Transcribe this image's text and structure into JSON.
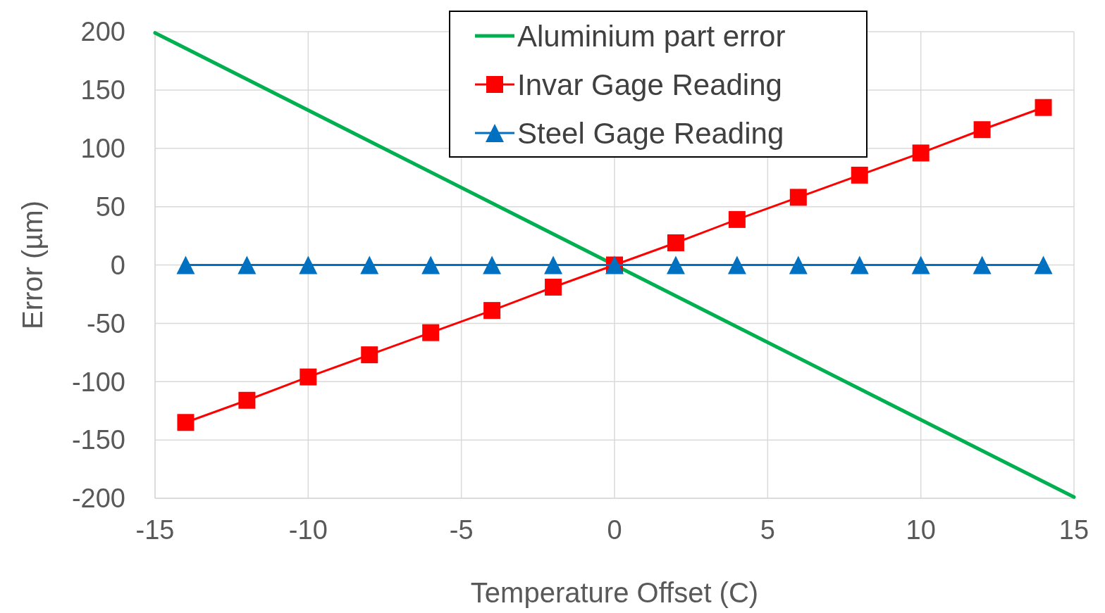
{
  "chart_data": {
    "type": "line",
    "xlabel": "Temperature Offset (C)",
    "ylabel": "Error (µm)",
    "xlim": [
      -15,
      15
    ],
    "xticks": [
      -15,
      -10,
      -5,
      0,
      5,
      10,
      15
    ],
    "ylim": [
      -200,
      200
    ],
    "yticks": [
      -200,
      -150,
      -100,
      -50,
      0,
      50,
      100,
      150,
      200
    ],
    "grid": true,
    "legend": "top",
    "line_style": "solid",
    "series": [
      {
        "name": "Aluminium part error",
        "color": "#00b050",
        "marker": "none",
        "x": [
          -15,
          0,
          15
        ],
        "values": [
          199,
          0,
          -199
        ]
      },
      {
        "name": "Invar Gage Reading",
        "color": "#ff0000",
        "marker": "square",
        "x": [
          -14,
          -12,
          -10,
          -8,
          -6,
          -4,
          -2,
          0,
          2,
          4,
          6,
          8,
          10,
          12,
          14
        ],
        "values": [
          -135,
          -116,
          -96,
          -77,
          -58,
          -39,
          -19,
          0,
          19,
          39,
          58,
          77,
          96,
          116,
          135
        ]
      },
      {
        "name": "Steel Gage Reading",
        "color": "#0070c0",
        "marker": "triangle",
        "x": [
          -14,
          -12,
          -10,
          -8,
          -6,
          -4,
          -2,
          0,
          2,
          4,
          6,
          8,
          10,
          12,
          14
        ],
        "values": [
          0,
          0,
          0,
          0,
          0,
          0,
          0,
          0,
          0,
          0,
          0,
          0,
          0,
          0,
          0
        ]
      }
    ]
  }
}
